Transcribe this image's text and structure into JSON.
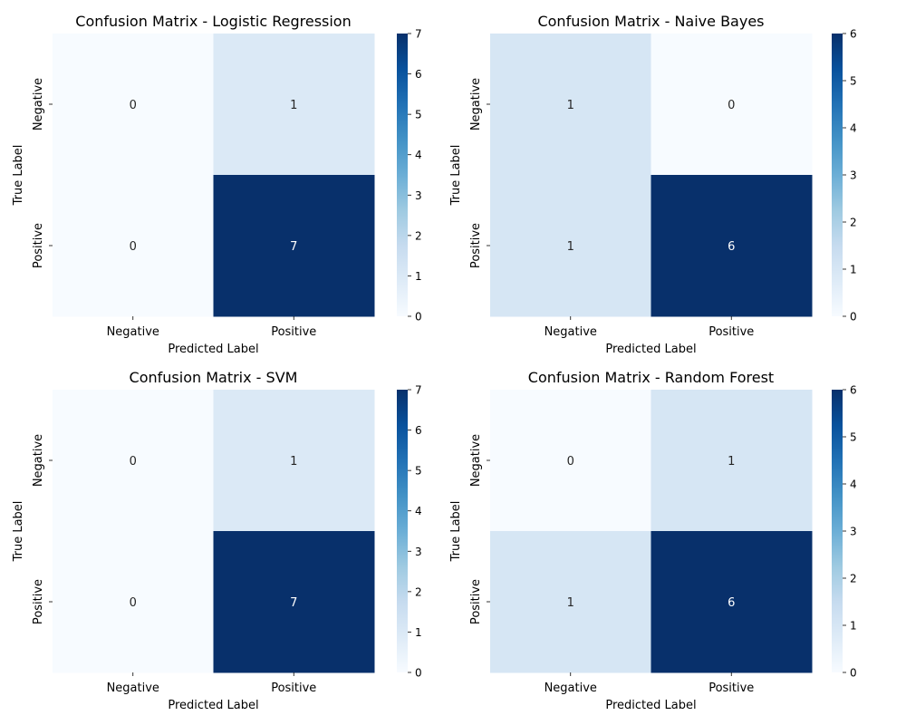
{
  "chart_data": [
    {
      "type": "heatmap",
      "title": "Confusion Matrix - Logistic Regression",
      "xlabel": "Predicted Label",
      "ylabel": "True Label",
      "x_categories": [
        "Negative",
        "Positive"
      ],
      "y_categories": [
        "Negative",
        "Positive"
      ],
      "values": [
        [
          0,
          1
        ],
        [
          0,
          7
        ]
      ],
      "colorbar": {
        "min": 0,
        "max": 7,
        "ticks": [
          "0",
          "1",
          "2",
          "3",
          "4",
          "5",
          "6",
          "7"
        ]
      },
      "colormap": "Blues"
    },
    {
      "type": "heatmap",
      "title": "Confusion Matrix - Naive Bayes",
      "xlabel": "Predicted Label",
      "ylabel": "True Label",
      "x_categories": [
        "Negative",
        "Positive"
      ],
      "y_categories": [
        "Negative",
        "Positive"
      ],
      "values": [
        [
          1,
          0
        ],
        [
          1,
          6
        ]
      ],
      "colorbar": {
        "min": 0,
        "max": 6,
        "ticks": [
          "0",
          "1",
          "2",
          "3",
          "4",
          "5",
          "6"
        ]
      },
      "colormap": "Blues"
    },
    {
      "type": "heatmap",
      "title": "Confusion Matrix - SVM",
      "xlabel": "Predicted Label",
      "ylabel": "True Label",
      "x_categories": [
        "Negative",
        "Positive"
      ],
      "y_categories": [
        "Negative",
        "Positive"
      ],
      "values": [
        [
          0,
          1
        ],
        [
          0,
          7
        ]
      ],
      "colorbar": {
        "min": 0,
        "max": 7,
        "ticks": [
          "0",
          "1",
          "2",
          "3",
          "4",
          "5",
          "6",
          "7"
        ]
      },
      "colormap": "Blues"
    },
    {
      "type": "heatmap",
      "title": "Confusion Matrix - Random Forest",
      "xlabel": "Predicted Label",
      "ylabel": "True Label",
      "x_categories": [
        "Negative",
        "Positive"
      ],
      "y_categories": [
        "Negative",
        "Positive"
      ],
      "values": [
        [
          0,
          1
        ],
        [
          1,
          6
        ]
      ],
      "colorbar": {
        "min": 0,
        "max": 6,
        "ticks": [
          "0",
          "1",
          "2",
          "3",
          "4",
          "5",
          "6"
        ]
      },
      "colormap": "Blues"
    }
  ]
}
